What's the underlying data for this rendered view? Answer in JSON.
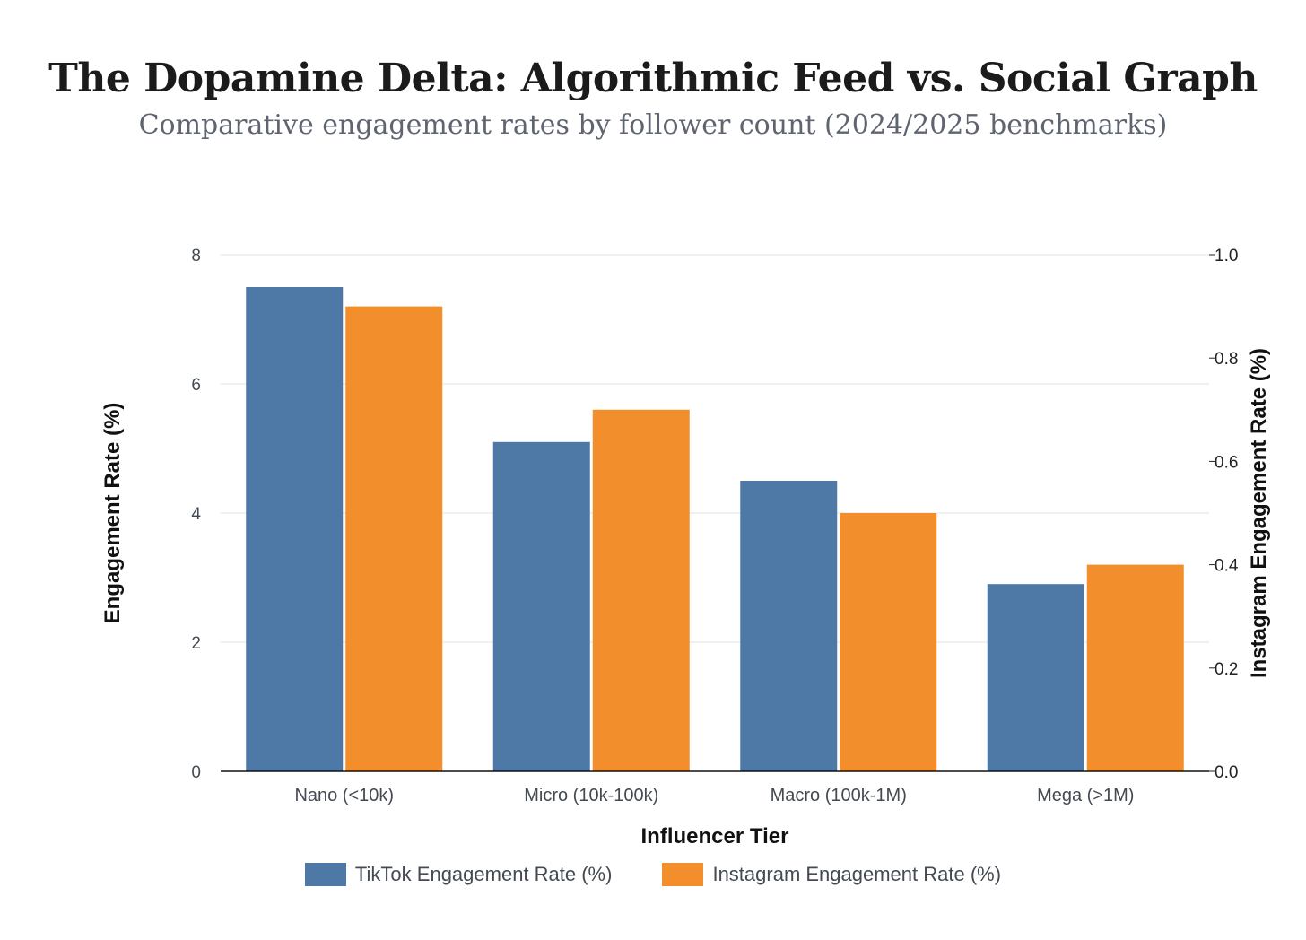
{
  "title": "The Dopamine Delta: Algorithmic Feed vs. Social Graph",
  "subtitle": "Comparative engagement rates by follower count (2024/2025 benchmarks)",
  "chart_data": {
    "type": "bar",
    "categories": [
      "Nano (<10k)",
      "Micro (10k-100k)",
      "Macro (100k-1M)",
      "Mega (>1M)"
    ],
    "series": [
      {
        "name": "TikTok Engagement Rate (%)",
        "axis": "left",
        "color": "#4e79a7",
        "values": [
          7.5,
          5.1,
          4.5,
          2.9
        ]
      },
      {
        "name": "Instagram Engagement Rate (%)",
        "axis": "right",
        "color": "#f28e2b",
        "values": [
          0.9,
          0.7,
          0.5,
          0.4
        ]
      }
    ],
    "xlabel": "Influencer Tier",
    "ylabel": "Engagement Rate (%)",
    "y2label": "Instagram Engagement Rate (%)",
    "ylim": [
      0,
      8
    ],
    "y2lim": [
      0,
      1
    ],
    "yticks": [
      "0",
      "2",
      "4",
      "6",
      "8"
    ],
    "y2ticks": [
      "0.0",
      "0.2",
      "0.4",
      "0.6",
      "0.8",
      "1.0"
    ],
    "grid": true,
    "legend": "bottom"
  }
}
